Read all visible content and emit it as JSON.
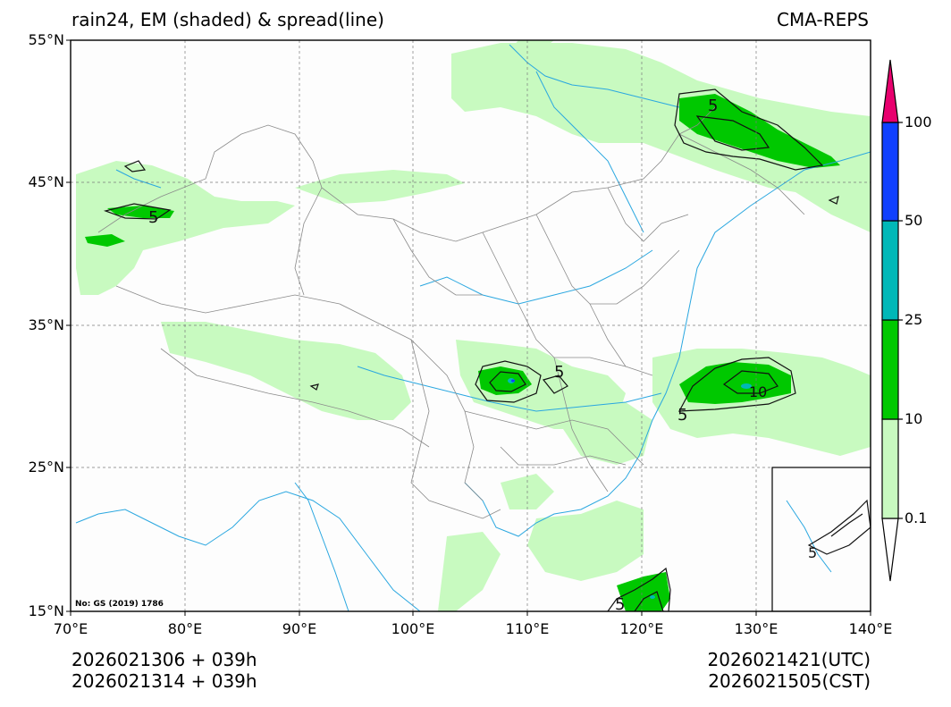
{
  "title": {
    "left": "rain24, EM (shaded) & spread(line)",
    "right": "CMA-REPS"
  },
  "axes": {
    "lat_ticks": [
      "55°N",
      "45°N",
      "35°N",
      "25°N",
      "15°N"
    ],
    "lon_ticks": [
      "70°E",
      "80°E",
      "90°E",
      "100°E",
      "110°E",
      "120°E",
      "130°E",
      "140°E"
    ],
    "lat_range": [
      15,
      55
    ],
    "lon_range": [
      70,
      140
    ]
  },
  "run_info": {
    "init_utc": "2026021306  +  039h",
    "init_cst": "2026021314  +  039h",
    "valid_utc": "2026021421(UTC)",
    "valid_cst": "2026021505(CST)"
  },
  "colorbar": {
    "labels": [
      "0.1",
      "10",
      "25",
      "50",
      "100"
    ],
    "colors": [
      "#c8fac0",
      "#00c800",
      "#00b8b8",
      "#1040ff",
      "#e8006e"
    ]
  },
  "map_note": "No: GS (2019) 1786",
  "spread_contour_labels": [
    "5",
    "5",
    "5",
    "5",
    "5",
    "10",
    "5"
  ]
}
